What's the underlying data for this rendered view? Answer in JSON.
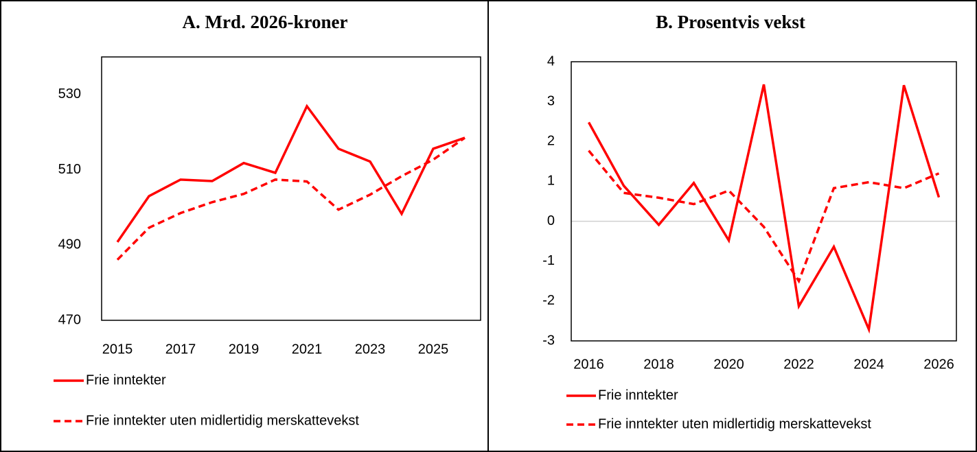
{
  "chart_data": [
    {
      "type": "line",
      "title": "A. Mrd. 2026-kroner",
      "x": [
        2015,
        2016,
        2017,
        2018,
        2019,
        2020,
        2021,
        2022,
        2023,
        2024,
        2025,
        2026
      ],
      "xlim": [
        2014.5,
        2026.5
      ],
      "xticks": [
        2015,
        2017,
        2019,
        2021,
        2023,
        2025
      ],
      "ylim": [
        470,
        540
      ],
      "yticks": [
        470,
        490,
        510,
        530
      ],
      "zero_line": false,
      "series": [
        {
          "name": "Frie inntekter",
          "color": "#ff0000",
          "style": "solid",
          "values": [
            490.8,
            503.0,
            507.4,
            507.0,
            511.8,
            509.2,
            526.9,
            515.6,
            512.2,
            498.3,
            515.6,
            518.5
          ]
        },
        {
          "name": "Frie inntekter uten midlertidig merskattevekst",
          "color": "#ff0000",
          "style": "dashed",
          "values": [
            486.1,
            494.6,
            498.5,
            501.4,
            503.6,
            507.4,
            506.9,
            499.4,
            503.4,
            508.3,
            512.7,
            518.5
          ]
        }
      ]
    },
    {
      "type": "line",
      "title": "B. Prosentvis vekst",
      "x": [
        2016,
        2017,
        2018,
        2019,
        2020,
        2021,
        2022,
        2023,
        2024,
        2025,
        2026
      ],
      "xlim": [
        2015.5,
        2026.5
      ],
      "xticks": [
        2016,
        2018,
        2020,
        2022,
        2024,
        2026
      ],
      "ylim": [
        -3,
        4
      ],
      "yticks": [
        -3,
        -2,
        -1,
        0,
        1,
        2,
        3,
        4
      ],
      "zero_line": true,
      "series": [
        {
          "name": "Frie inntekter",
          "color": "#ff0000",
          "style": "solid",
          "values": [
            2.48,
            0.89,
            -0.09,
            0.96,
            -0.48,
            3.43,
            -2.13,
            -0.64,
            -2.71,
            3.41,
            0.6
          ]
        },
        {
          "name": "Frie inntekter uten midlertidig merskattevekst",
          "color": "#ff0000",
          "style": "dashed",
          "values": [
            1.77,
            0.71,
            0.59,
            0.43,
            0.77,
            -0.14,
            -1.5,
            0.83,
            0.98,
            0.83,
            1.2
          ]
        }
      ]
    }
  ]
}
